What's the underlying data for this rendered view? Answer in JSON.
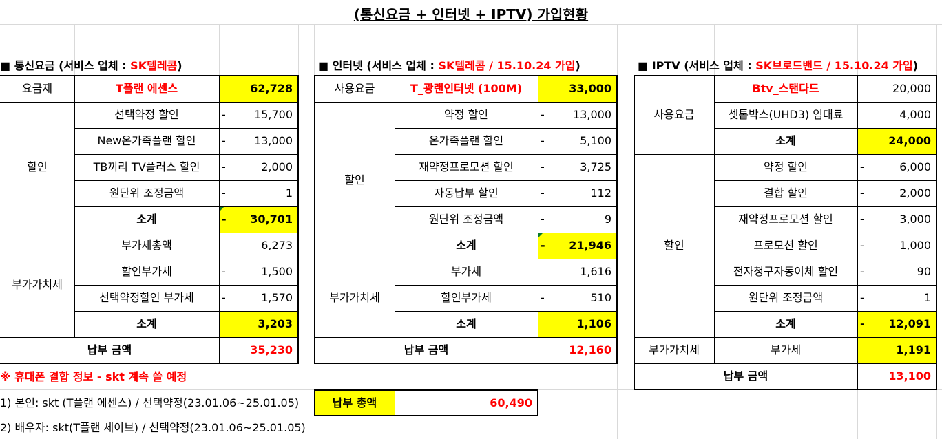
{
  "title": "(통신요금 + 인터넷 + IPTV) 가입현황",
  "mobile": {
    "header_prefix": "■ 통신요금 (서비스 업체 : ",
    "header_vendor": "SK텔레콤",
    "header_suffix": ")",
    "plan_label": "요금제",
    "plan_name": "T플랜 에센스",
    "plan_amount": "62,728",
    "discount_label": "할인",
    "discounts": [
      {
        "name": "선택약정 할인",
        "sign": "-",
        "amount": "15,700"
      },
      {
        "name": "New온가족플랜 할인",
        "sign": "-",
        "amount": "13,000"
      },
      {
        "name": "TB끼리 TV플러스 할인",
        "sign": "-",
        "amount": "2,000"
      },
      {
        "name": "원단위 조정금액",
        "sign": "-",
        "amount": "1"
      }
    ],
    "discount_subtotal_label": "소계",
    "discount_subtotal_sign": "-",
    "discount_subtotal": "30,701",
    "vat_label": "부가가치세",
    "vat_items": [
      {
        "name": "부가세총액",
        "sign": "",
        "amount": "6,273"
      },
      {
        "name": "할인부가세",
        "sign": "-",
        "amount": "1,500"
      },
      {
        "name": "선택약정할인 부가세",
        "sign": "-",
        "amount": "1,570"
      }
    ],
    "vat_subtotal_label": "소계",
    "vat_subtotal": "3,203",
    "pay_label": "납부 금액",
    "pay_amount": "35,230"
  },
  "internet": {
    "header_prefix": "■ 인터넷 (서비스 업체 : ",
    "header_vendor": "SK텔레콤 / 15.10.24 가입",
    "header_suffix": ")",
    "fee_label": "사용요금",
    "fee_name": "T_광랜인터넷 (100M)",
    "fee_amount": "33,000",
    "discount_label": "할인",
    "discounts": [
      {
        "name": "약정 할인",
        "sign": "-",
        "amount": "13,000"
      },
      {
        "name": "온가족플랜 할인",
        "sign": "-",
        "amount": "5,100"
      },
      {
        "name": "재약정프로모션 할인",
        "sign": "-",
        "amount": "3,725"
      },
      {
        "name": "자동납부 할인",
        "sign": "-",
        "amount": "112"
      },
      {
        "name": "원단위 조정금액",
        "sign": "-",
        "amount": "9"
      }
    ],
    "discount_subtotal_label": "소계",
    "discount_subtotal_sign": "-",
    "discount_subtotal": "21,946",
    "vat_label": "부가가치세",
    "vat_items": [
      {
        "name": "부가세",
        "sign": "",
        "amount": "1,616"
      },
      {
        "name": "할인부가세",
        "sign": "-",
        "amount": "510"
      }
    ],
    "vat_subtotal_label": "소계",
    "vat_subtotal": "1,106",
    "pay_label": "납부 금액",
    "pay_amount": "12,160"
  },
  "iptv": {
    "header_prefix": "■ IPTV (서비스 업체 : ",
    "header_vendor": "SK브로드밴드 / 15.10.24 가입",
    "header_suffix": ")",
    "fee_label": "사용요금",
    "fees": [
      {
        "name": "Btv_스탠다드",
        "amount": "20,000"
      },
      {
        "name": "셋톱박스(UHD3) 임대료",
        "amount": "4,000"
      }
    ],
    "fee_subtotal_label": "소계",
    "fee_subtotal": "24,000",
    "discount_label": "할인",
    "discounts": [
      {
        "name": "약정 할인",
        "sign": "-",
        "amount": "6,000"
      },
      {
        "name": "결합 할인",
        "sign": "-",
        "amount": "2,000"
      },
      {
        "name": "재약정프로모션 할인",
        "sign": "-",
        "amount": "3,000"
      },
      {
        "name": "프로모션 할인",
        "sign": "-",
        "amount": "1,000"
      },
      {
        "name": "전자청구자동이체 할인",
        "sign": "-",
        "amount": "90"
      },
      {
        "name": "원단위 조정금액",
        "sign": "-",
        "amount": "1"
      }
    ],
    "discount_subtotal_label": "소계",
    "discount_subtotal_sign": "-",
    "discount_subtotal": "12,091",
    "vat_label": "부가가치세",
    "vat_name": "부가세",
    "vat_amount": "1,191",
    "pay_label": "납부 금액",
    "pay_amount": "13,100"
  },
  "notes": {
    "header": "※ 휴대폰 결합 정보 - skt 계속 쓸 예정",
    "line1": "1) 본인: skt (T플랜 에센스) / 선택약정(23.01.06~25.01.05)",
    "line2": "2) 배우자: skt(T플랜 세이브) / 선택약정(23.01.06~25.01.05)"
  },
  "total": {
    "label": "납부 총액",
    "amount": "60,490"
  }
}
